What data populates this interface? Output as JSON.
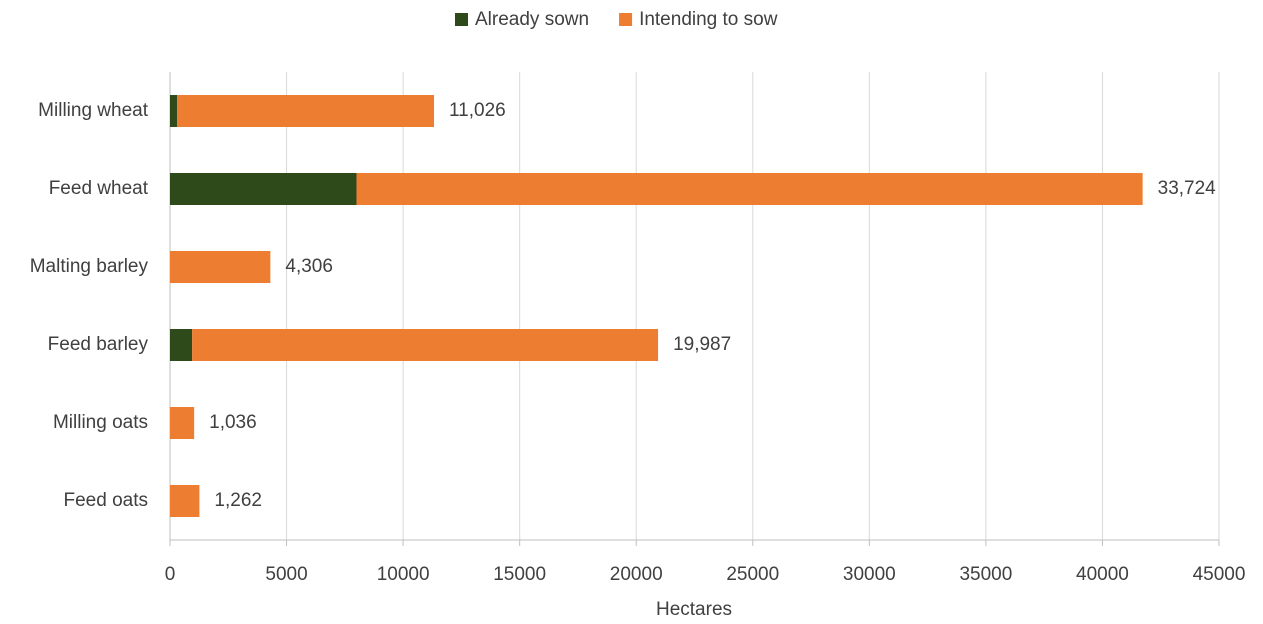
{
  "chart_data": {
    "type": "stacked_barh",
    "categories": [
      "Milling wheat",
      "Feed wheat",
      "Malting barley",
      "Feed barley",
      "Milling oats",
      "Feed oats"
    ],
    "series": [
      {
        "name": "Already sown",
        "color": "#2e4a1b",
        "values": [
          300,
          8000,
          0,
          950,
          0,
          0
        ]
      },
      {
        "name": "Intending to sow",
        "color": "#ed7d31",
        "values": [
          11026,
          33724,
          4306,
          19987,
          1036,
          1262
        ],
        "value_labels": [
          "11,026",
          "33,724",
          "4,306",
          "19,987",
          "1,036",
          "1,262"
        ]
      }
    ],
    "xlabel": "Hectares",
    "xlim": [
      0,
      45000
    ],
    "xticks": [
      0,
      5000,
      10000,
      15000,
      20000,
      25000,
      30000,
      35000,
      40000,
      45000
    ],
    "grid": true,
    "legend": "top"
  }
}
